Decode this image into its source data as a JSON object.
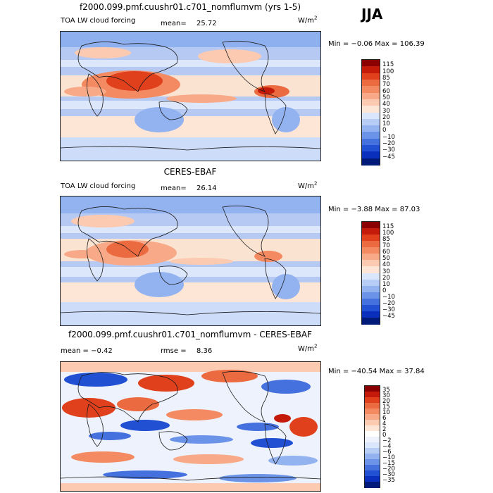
{
  "season": "JJA",
  "panels": [
    {
      "title": "f2000.099.pmf.cuushr01.c701_nomflumvm (yrs 1-5)",
      "left_label": "TOA LW cloud forcing",
      "stat_label": "mean=",
      "stat_value": "25.72",
      "units": "W/m",
      "units_exp": "2",
      "minmax": "Min =  −0.06 Max = 106.39",
      "colorbar": {
        "labels": [
          "115",
          "100",
          "85",
          "70",
          "60",
          "50",
          "40",
          "30",
          "20",
          "10",
          "0",
          "−10",
          "−20",
          "−30",
          "−45"
        ],
        "colors": [
          "#8b0000",
          "#c41a0a",
          "#e0401c",
          "#ec6a40",
          "#f48a62",
          "#f8aa88",
          "#fccab0",
          "#fde6d6",
          "#dae6fb",
          "#b8cdf6",
          "#92b2f0",
          "#6b93e8",
          "#4571df",
          "#2250d2",
          "#0b2fbd",
          "#001a7a"
        ]
      }
    },
    {
      "title": "CERES-EBAF",
      "left_label": "TOA LW cloud forcing",
      "stat_label": "mean=",
      "stat_value": "26.14",
      "units": "W/m",
      "units_exp": "2",
      "minmax": "Min =  −3.88 Max =  87.03",
      "colorbar": {
        "labels": [
          "115",
          "100",
          "85",
          "70",
          "60",
          "50",
          "40",
          "30",
          "20",
          "10",
          "0",
          "−10",
          "−20",
          "−30",
          "−45"
        ],
        "colors": [
          "#8b0000",
          "#c41a0a",
          "#e0401c",
          "#ec6a40",
          "#f48a62",
          "#f8aa88",
          "#fccab0",
          "#fde6d6",
          "#dae6fb",
          "#b8cdf6",
          "#92b2f0",
          "#6b93e8",
          "#4571df",
          "#2250d2",
          "#0b2fbd",
          "#001a7a"
        ]
      }
    },
    {
      "title": "f2000.099.pmf.cuushr01.c701_nomflumvm - CERES-EBAF",
      "left_label": "mean =   −0.42",
      "stat_label": "rmse =",
      "stat_value": "8.36",
      "units": "W/m",
      "units_exp": "2",
      "minmax": "Min = −40.54 Max =  37.84",
      "colorbar": {
        "labels": [
          "35",
          "30",
          "20",
          "15",
          "10",
          "6",
          "4",
          "2",
          "0",
          "−2",
          "−4",
          "−6",
          "−10",
          "−15",
          "−20",
          "−30",
          "−35"
        ],
        "colors": [
          "#8b0000",
          "#c41a0a",
          "#e0401c",
          "#ec6a40",
          "#f48a62",
          "#f8aa88",
          "#fccab0",
          "#fde6d6",
          "#ffffff",
          "#eef2fc",
          "#dae6fb",
          "#b8cdf6",
          "#92b2f0",
          "#6b93e8",
          "#4571df",
          "#2250d2",
          "#0b2fbd",
          "#001a7a"
        ]
      }
    }
  ]
}
